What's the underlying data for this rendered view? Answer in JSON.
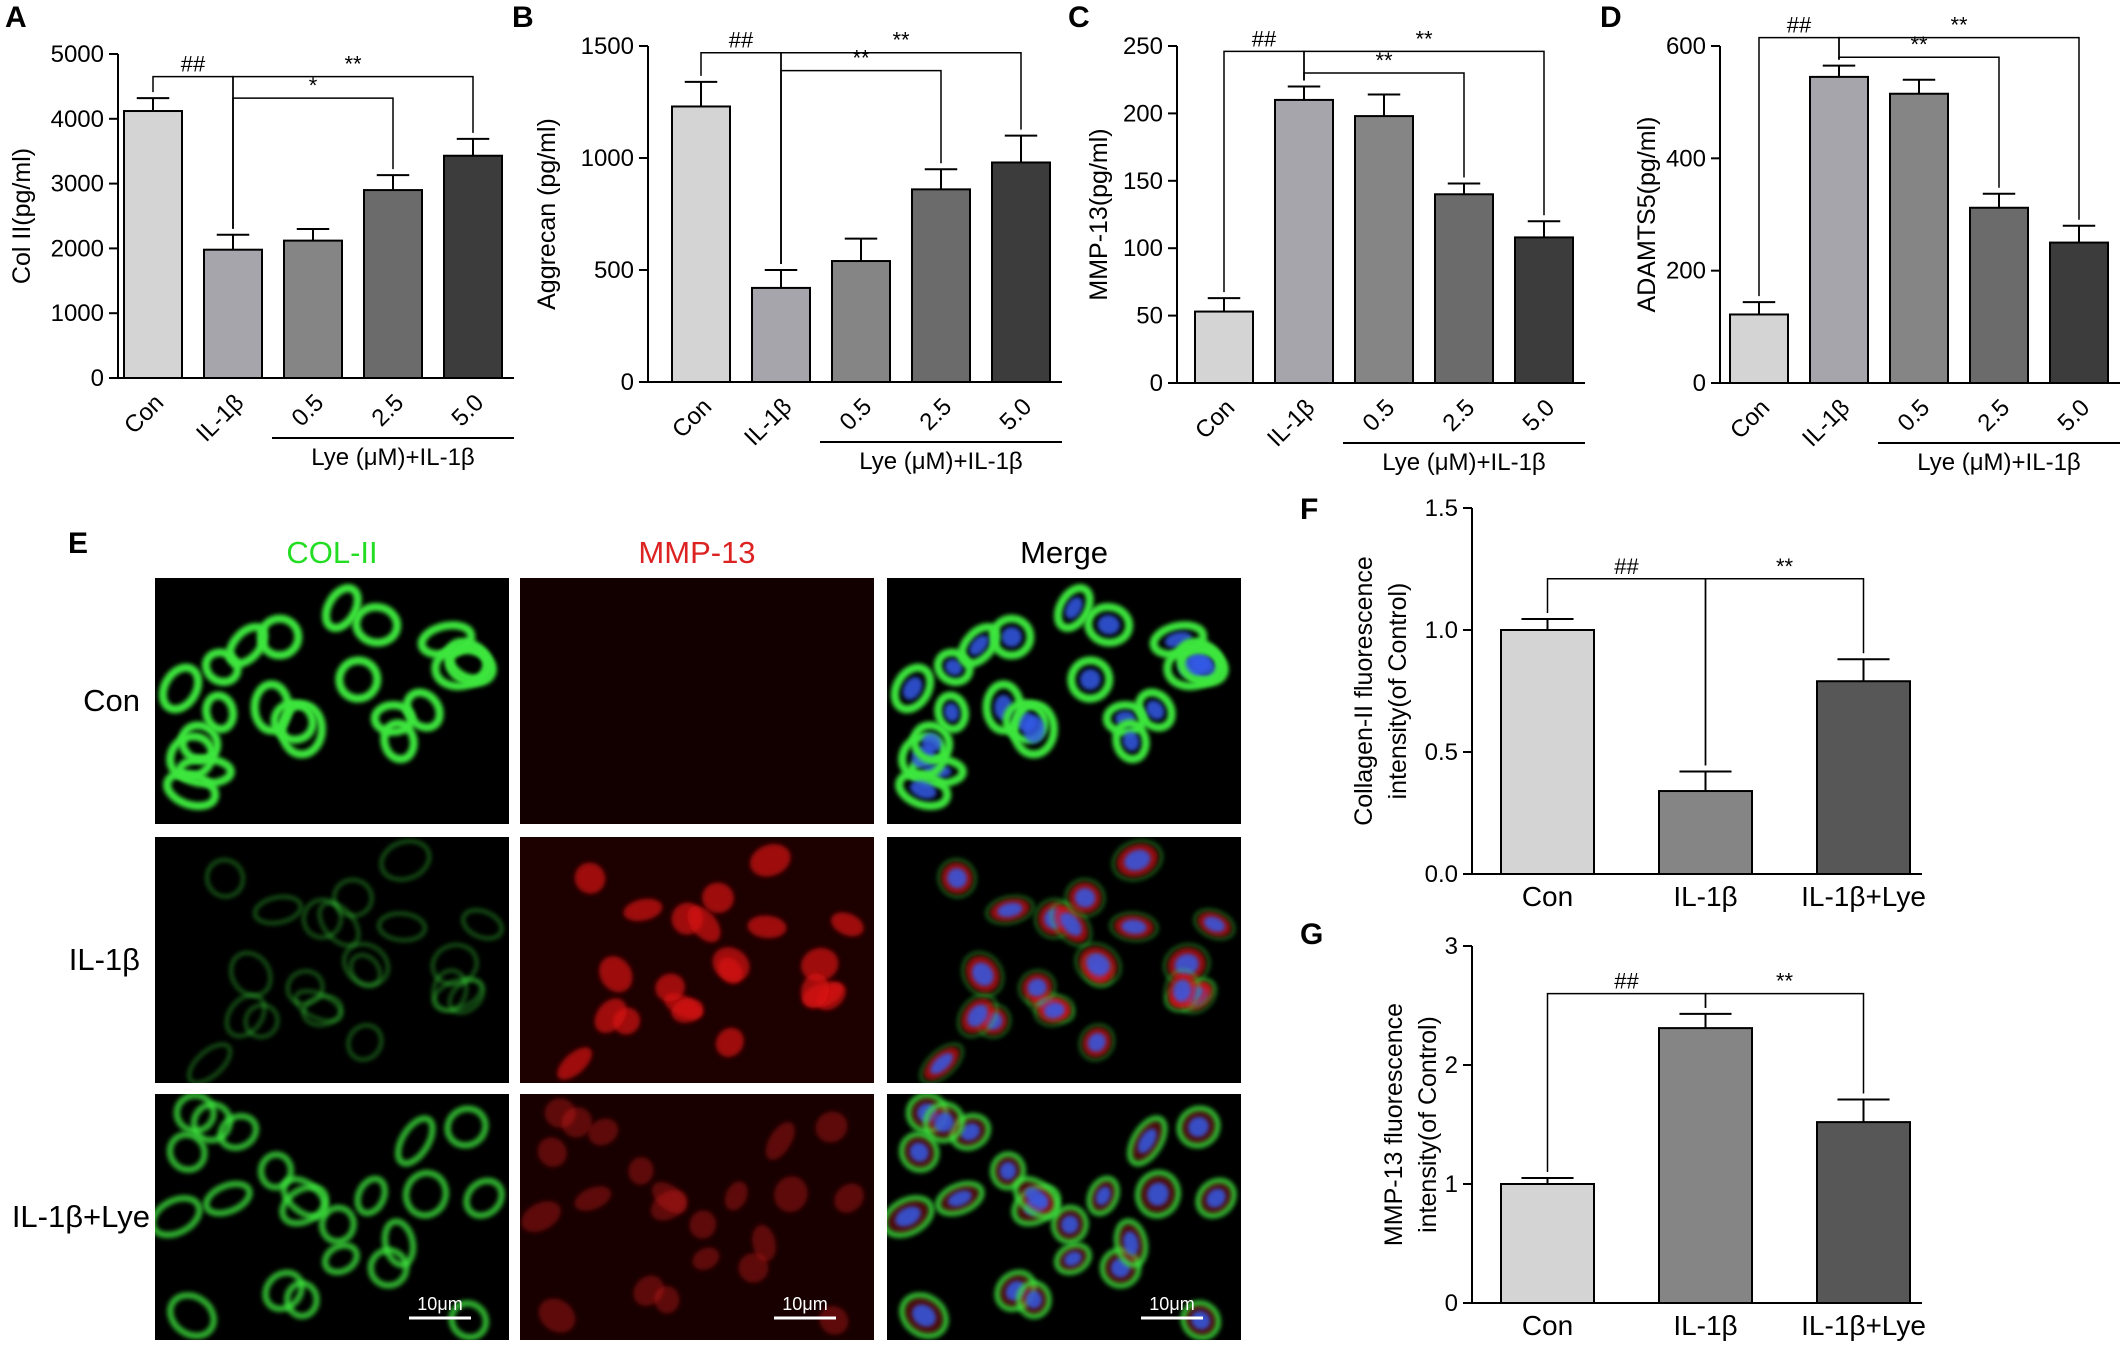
{
  "chart_data": [
    {
      "panel": "A",
      "type": "bar",
      "ylabel": "Col II(pg/ml)",
      "ylim": [
        0,
        5000
      ],
      "yticks": [
        0,
        1000,
        2000,
        3000,
        4000,
        5000
      ],
      "categories": [
        "Con",
        "IL-1β",
        "0.5",
        "2.5",
        "5.0"
      ],
      "values": [
        4120,
        1980,
        2120,
        2900,
        3430
      ],
      "errors": [
        200,
        230,
        180,
        230,
        260
      ],
      "colors": [
        "#d4d4d4",
        "#a5a5ab",
        "#858585",
        "#6b6b6b",
        "#3c3c3c"
      ],
      "group_label": "Lye (μM)+IL-1β",
      "brackets": [
        {
          "from": 0,
          "to": 1,
          "label": "##",
          "y": 4650
        },
        {
          "from": 1,
          "to": 3,
          "label": "*",
          "y": 4320
        },
        {
          "from": 1,
          "to": 4,
          "label": "**",
          "y": 4650
        }
      ]
    },
    {
      "panel": "B",
      "type": "bar",
      "ylabel": "Aggrecan (pg/ml)",
      "ylim": [
        0,
        1500
      ],
      "yticks": [
        0,
        500,
        1000,
        1500
      ],
      "categories": [
        "Con",
        "IL-1β",
        "0.5",
        "2.5",
        "5.0"
      ],
      "values": [
        1230,
        420,
        540,
        860,
        980
      ],
      "errors": [
        110,
        80,
        100,
        90,
        120
      ],
      "colors": [
        "#d4d4d4",
        "#a5a5ab",
        "#858585",
        "#6b6b6b",
        "#3c3c3c"
      ],
      "group_label": "Lye (μM)+IL-1β",
      "brackets": [
        {
          "from": 0,
          "to": 1,
          "label": "##",
          "y": 1470
        },
        {
          "from": 1,
          "to": 3,
          "label": "**",
          "y": 1390
        },
        {
          "from": 1,
          "to": 4,
          "label": "**",
          "y": 1470
        }
      ]
    },
    {
      "panel": "C",
      "type": "bar",
      "ylabel": "MMP-13(pg/ml)",
      "ylim": [
        0,
        250
      ],
      "yticks": [
        0,
        50,
        100,
        150,
        200,
        250
      ],
      "categories": [
        "Con",
        "IL-1β",
        "0.5",
        "2.5",
        "5.0"
      ],
      "values": [
        53,
        210,
        198,
        140,
        108
      ],
      "errors": [
        10,
        10,
        16,
        8,
        12
      ],
      "colors": [
        "#d4d4d4",
        "#a5a5ab",
        "#858585",
        "#6b6b6b",
        "#3c3c3c"
      ],
      "group_label": "Lye (μM)+IL-1β",
      "brackets": [
        {
          "from": 0,
          "to": 1,
          "label": "##",
          "y": 246
        },
        {
          "from": 1,
          "to": 3,
          "label": "**",
          "y": 230
        },
        {
          "from": 1,
          "to": 4,
          "label": "**",
          "y": 246
        }
      ]
    },
    {
      "panel": "D",
      "type": "bar",
      "ylabel": "ADAMTS5(pg/ml)",
      "ylim": [
        0,
        600
      ],
      "yticks": [
        0,
        200,
        400,
        600
      ],
      "categories": [
        "Con",
        "IL-1β",
        "0.5",
        "2.5",
        "5.0"
      ],
      "values": [
        122,
        545,
        515,
        312,
        250
      ],
      "errors": [
        22,
        20,
        25,
        25,
        30
      ],
      "colors": [
        "#d4d4d4",
        "#a5a5ab",
        "#858585",
        "#6b6b6b",
        "#3c3c3c"
      ],
      "group_label": "Lye (μM)+IL-1β",
      "brackets": [
        {
          "from": 0,
          "to": 1,
          "label": "##",
          "y": 615
        },
        {
          "from": 1,
          "to": 3,
          "label": "**",
          "y": 580
        },
        {
          "from": 1,
          "to": 4,
          "label": "**",
          "y": 615
        }
      ]
    },
    {
      "panel": "F",
      "type": "bar",
      "ylabel": "Collagen-II fluorescence intensity(of Control)",
      "ylabel_lines": [
        "Collagen-II fluorescence",
        "intensity(of Control)"
      ],
      "ylim": [
        0,
        1.5
      ],
      "yticks": [
        0.0,
        0.5,
        1.0,
        1.5
      ],
      "ytick_labels": [
        "0.0",
        "0.5",
        "1.0",
        "1.5"
      ],
      "categories": [
        "Con",
        "IL-1β",
        "IL-1β+Lye"
      ],
      "values": [
        1.0,
        0.34,
        0.79
      ],
      "errors": [
        0.045,
        0.08,
        0.09
      ],
      "colors": [
        "#d4d4d4",
        "#858585",
        "#575757"
      ],
      "brackets": [
        {
          "from": 0,
          "to": 1,
          "label": "##",
          "y": 1.21
        },
        {
          "from": 1,
          "to": 2,
          "label": "**",
          "y": 1.21
        }
      ]
    },
    {
      "panel": "G",
      "type": "bar",
      "ylabel": "MMP-13 fluorescence intensity(of Control)",
      "ylabel_lines": [
        "MMP-13 fluorescence",
        "intensity(of Control)"
      ],
      "ylim": [
        0,
        3
      ],
      "yticks": [
        0,
        1,
        2,
        3
      ],
      "categories": [
        "Con",
        "IL-1β",
        "IL-1β+Lye"
      ],
      "values": [
        1.0,
        2.31,
        1.52
      ],
      "errors": [
        0.05,
        0.12,
        0.19
      ],
      "colors": [
        "#d4d4d4",
        "#858585",
        "#575757"
      ],
      "brackets": [
        {
          "from": 0,
          "to": 1,
          "label": "##",
          "y": 2.6
        },
        {
          "from": 1,
          "to": 2,
          "label": "**",
          "y": 2.6
        }
      ]
    }
  ],
  "fluorescence": {
    "panel": "E",
    "columns": [
      "COL-II",
      "MMP-13",
      "Merge"
    ],
    "column_colors": [
      "#22dd22",
      "#dd2222",
      "#000000"
    ],
    "rows": [
      "Con",
      "IL-1β",
      "IL-1β+Lye"
    ],
    "scale_bar": "10μm"
  }
}
